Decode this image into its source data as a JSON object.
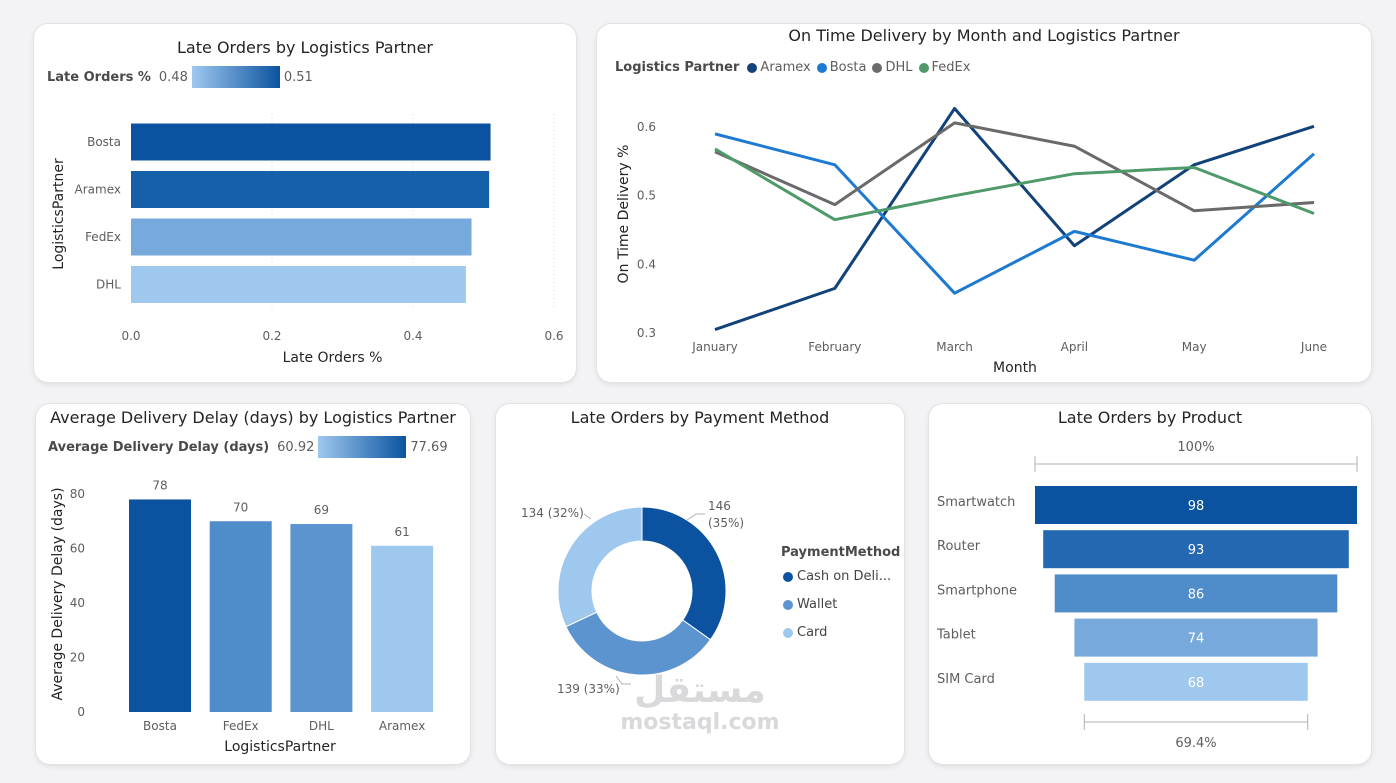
{
  "colors": {
    "card_bg": "#ffffff",
    "dark_blue": "#0b53a0",
    "mid_blue": "#5b94cf",
    "light_blue": "#9fc8ef",
    "aramex": "#12427a",
    "bosta": "#1e7ad0",
    "dhl": "#6a6a6a",
    "fedex": "#4e9a68"
  },
  "chart_data": [
    {
      "id": "late-orders-partner",
      "type": "bar",
      "orientation": "horizontal",
      "title": "Late Orders by Logistics Partner",
      "xlabel": "Late Orders %",
      "ylabel": "LogisticsPartner",
      "categories": [
        "Bosta",
        "Aramex",
        "FedEx",
        "DHL"
      ],
      "values": [
        0.51,
        0.508,
        0.483,
        0.475
      ],
      "bar_colors": [
        "#0b53a0",
        "#1560a8",
        "#77a9dc",
        "#9fc8ef"
      ],
      "xlim": [
        0,
        0.6
      ],
      "xticks": [
        "0.0",
        "0.2",
        "0.4",
        "0.6"
      ],
      "xtick_values": [
        0,
        0.2,
        0.4,
        0.6
      ],
      "legend": {
        "label": "Late Orders %",
        "min": "0.48",
        "max": "0.51"
      }
    },
    {
      "id": "on-time-delivery",
      "type": "line",
      "title": "On Time Delivery by Month and Logistics Partner",
      "xlabel": "Month",
      "ylabel": "On Time Delivery %",
      "x": [
        "January",
        "February",
        "March",
        "April",
        "May",
        "June"
      ],
      "ylim": [
        0.3,
        0.62
      ],
      "yticks": [
        "0.3",
        "0.4",
        "0.5",
        "0.6"
      ],
      "ytick_values": [
        0.3,
        0.4,
        0.5,
        0.6
      ],
      "legend_title": "Logistics Partner",
      "series": [
        {
          "name": "Aramex",
          "color": "#12427a",
          "values": [
            0.305,
            0.365,
            0.627,
            0.427,
            0.545,
            0.601
          ]
        },
        {
          "name": "Bosta",
          "color": "#1e7ad0",
          "values": [
            0.59,
            0.545,
            0.358,
            0.448,
            0.406,
            0.561
          ]
        },
        {
          "name": "DHL",
          "color": "#6a6a6a",
          "values": [
            0.564,
            0.487,
            0.606,
            0.572,
            0.478,
            0.49
          ]
        },
        {
          "name": "FedEx",
          "color": "#4e9a68",
          "values": [
            0.568,
            0.465,
            0.5,
            0.532,
            0.541,
            0.474
          ]
        }
      ]
    },
    {
      "id": "avg-delay",
      "type": "bar",
      "orientation": "vertical",
      "title": "Average Delivery Delay (days) by Logistics Partner",
      "xlabel": "LogisticsPartner",
      "ylabel": "Average Delivery Delay (days)",
      "categories": [
        "Bosta",
        "FedEx",
        "DHL",
        "Aramex"
      ],
      "values": [
        78,
        70,
        69,
        61
      ],
      "data_labels": [
        "78",
        "70",
        "69",
        "61"
      ],
      "bar_colors": [
        "#0b53a0",
        "#4f8cca",
        "#5b94cf",
        "#9fc8ef"
      ],
      "ylim": [
        0,
        80
      ],
      "yticks": [
        "0",
        "20",
        "40",
        "60",
        "80"
      ],
      "ytick_values": [
        0,
        20,
        40,
        60,
        80
      ],
      "legend": {
        "label": "Average Delivery Delay (days)",
        "min": "60.92",
        "max": "77.69"
      }
    },
    {
      "id": "payment-method",
      "type": "pie",
      "donut": true,
      "title": "Late Orders by Payment Method",
      "legend_title": "PaymentMethod",
      "slices": [
        {
          "label": "Cash on Deli...",
          "value": 146,
          "pct": "35%",
          "color": "#0b53a0",
          "data_label_1": "146",
          "data_label_2": "(35%)"
        },
        {
          "label": "Wallet",
          "value": 139,
          "pct": "33%",
          "color": "#5b94cf",
          "data_label_1": "139 (33%)"
        },
        {
          "label": "Card",
          "value": 134,
          "pct": "32%",
          "color": "#9fc8ef",
          "data_label_1": "134 (32%)"
        }
      ]
    },
    {
      "id": "late-orders-product",
      "type": "funnel",
      "title": "Late Orders by Product",
      "categories": [
        "Smartwatch",
        "Router",
        "Smartphone",
        "Tablet",
        "SIM Card"
      ],
      "values": [
        98,
        93,
        86,
        74,
        68
      ],
      "data_labels": [
        "98",
        "93",
        "86",
        "74",
        "68"
      ],
      "bar_colors": [
        "#0b53a0",
        "#2368b0",
        "#4f8cca",
        "#77a9dc",
        "#9fc8ef"
      ],
      "top_pct": "100%",
      "bottom_pct": "69.4%"
    }
  ],
  "watermark": {
    "arabic": "مستقل",
    "latin": "mostaql.com"
  }
}
